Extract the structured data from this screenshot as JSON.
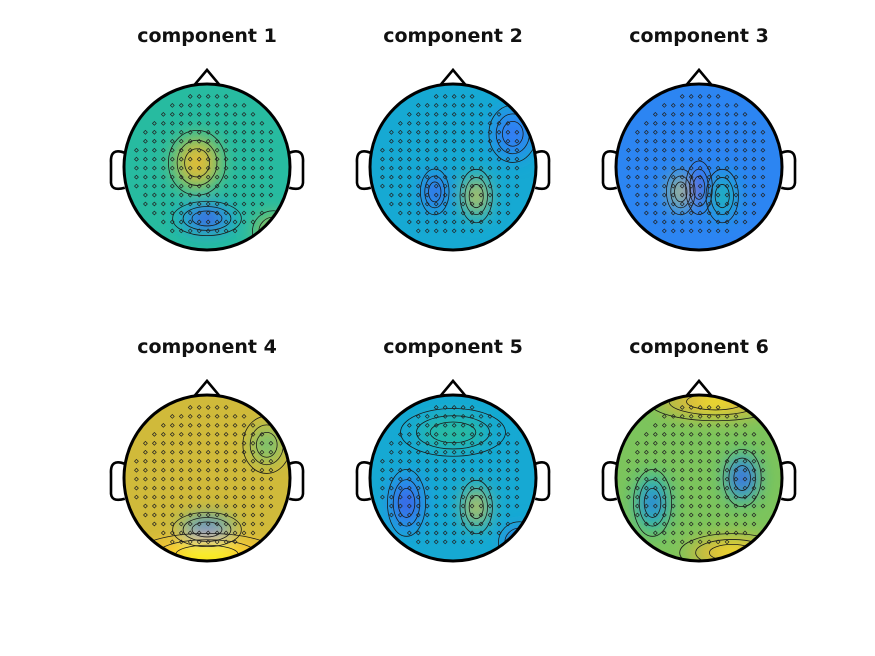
{
  "figure": {
    "panels": [
      {
        "title": "component 1"
      },
      {
        "title": "component 2"
      },
      {
        "title": "component 3"
      },
      {
        "title": "component 4"
      },
      {
        "title": "component 5"
      },
      {
        "title": "component 6"
      }
    ]
  },
  "colors": {
    "colormap": [
      "#3e26a8",
      "#4653f6",
      "#2c85f2",
      "#16a9d3",
      "#27bba0",
      "#7cc45c",
      "#d0ba3a",
      "#fdc632",
      "#f9fb15"
    ],
    "outline": "#000000",
    "contour": "#1a1a1a"
  },
  "chart_data": [
    {
      "type": "heatmap",
      "title": "component 1",
      "map_type": "scalp topography",
      "features": [
        {
          "region": "central-left",
          "polarity": "positive",
          "relative_level": 0.85
        },
        {
          "region": "occipital",
          "polarity": "negative",
          "relative_level": 0.0
        },
        {
          "region": "right-posterior edge",
          "polarity": "positive",
          "relative_level": 0.8
        },
        {
          "region": "background",
          "polarity": "neutral",
          "relative_level": 0.55
        }
      ]
    },
    {
      "type": "heatmap",
      "title": "component 2",
      "map_type": "scalp topography",
      "features": [
        {
          "region": "parietal-left",
          "polarity": "negative",
          "relative_level": 0.05
        },
        {
          "region": "parietal-right",
          "polarity": "positive",
          "relative_level": 0.85
        },
        {
          "region": "right-frontal",
          "polarity": "negative",
          "relative_level": 0.15
        },
        {
          "region": "background",
          "polarity": "neutral",
          "relative_level": 0.35
        }
      ]
    },
    {
      "type": "heatmap",
      "title": "component 3",
      "map_type": "scalp topography",
      "features": [
        {
          "region": "parietal-left",
          "polarity": "positive",
          "relative_level": 0.9
        },
        {
          "region": "parietal-midline",
          "polarity": "negative",
          "relative_level": 0.05
        },
        {
          "region": "parietal-right",
          "polarity": "positive",
          "relative_level": 0.55
        },
        {
          "region": "background",
          "polarity": "neutral",
          "relative_level": 0.25
        }
      ]
    },
    {
      "type": "heatmap",
      "title": "component 4",
      "map_type": "scalp topography",
      "features": [
        {
          "region": "occipital",
          "polarity": "negative",
          "relative_level": 0.0
        },
        {
          "region": "inferior edge",
          "polarity": "positive",
          "relative_level": 1.0
        },
        {
          "region": "right-frontal",
          "polarity": "neutral",
          "relative_level": 0.5
        },
        {
          "region": "background",
          "polarity": "positive",
          "relative_level": 0.75
        }
      ]
    },
    {
      "type": "heatmap",
      "title": "component 5",
      "map_type": "scalp topography",
      "features": [
        {
          "region": "temporal-left",
          "polarity": "negative",
          "relative_level": 0.0
        },
        {
          "region": "parietal-right",
          "polarity": "positive",
          "relative_level": 0.85
        },
        {
          "region": "frontal",
          "polarity": "neutral",
          "relative_level": 0.5
        },
        {
          "region": "right-posterior edge",
          "polarity": "negative",
          "relative_level": 0.05
        },
        {
          "region": "background",
          "polarity": "neutral",
          "relative_level": 0.4
        }
      ]
    },
    {
      "type": "heatmap",
      "title": "component 6",
      "map_type": "scalp topography",
      "features": [
        {
          "region": "temporal-left",
          "polarity": "negative",
          "relative_level": 0.05
        },
        {
          "region": "temporal-right",
          "polarity": "negative",
          "relative_level": 0.0
        },
        {
          "region": "frontal edge",
          "polarity": "positive",
          "relative_level": 1.0
        },
        {
          "region": "occipital edge",
          "polarity": "positive",
          "relative_level": 1.0
        },
        {
          "region": "background",
          "polarity": "neutral",
          "relative_level": 0.6
        }
      ]
    }
  ]
}
